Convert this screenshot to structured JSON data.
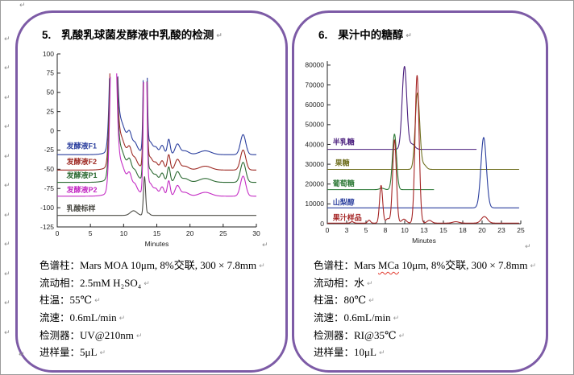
{
  "page": {
    "accent_border_color": "#7d5ba6",
    "outer_border_color": "#9b9b9b"
  },
  "marks": {
    "return_glyph": "↵"
  },
  "panels": [
    {
      "number": "5.",
      "title": "乳酸乳球菌发酵液中乳酸的检测",
      "specs": [
        {
          "label": "色谱柱：",
          "pre": "Mars MOA 10μm, 8%交联, 300 × 7.8mm",
          "mis": "",
          "post": ""
        },
        {
          "label": "流动相：",
          "pre": "2.5mM H₂SO₄",
          "mis": "",
          "post": ""
        },
        {
          "label": "柱温：",
          "pre": "55℃",
          "mis": "",
          "post": ""
        },
        {
          "label": "流速：",
          "pre": "0.6mL/min",
          "mis": "",
          "post": ""
        },
        {
          "label": "检测器：",
          "pre": "UV@210nm",
          "mis": "",
          "post": ""
        },
        {
          "label": "进样量：",
          "pre": "5μL",
          "mis": "",
          "post": ""
        }
      ]
    },
    {
      "number": "6.",
      "title": "果汁中的糖醇",
      "specs": [
        {
          "label": "色谱柱：",
          "pre": "Mars ",
          "mis": "MCa",
          "post": " 10μm, 8%交联, 300 × 7.8mm"
        },
        {
          "label": "流动相：",
          "pre": "水",
          "mis": "",
          "post": ""
        },
        {
          "label": "柱温：",
          "pre": "80℃",
          "mis": "",
          "post": ""
        },
        {
          "label": "流速：",
          "pre": "0.6mL/min",
          "mis": "",
          "post": ""
        },
        {
          "label": "检测器：",
          "pre": "RI@35℃",
          "mis": "",
          "post": ""
        },
        {
          "label": "进样量：",
          "pre": "10μL",
          "mis": "",
          "post": ""
        }
      ]
    }
  ],
  "chart_data": [
    {
      "type": "line",
      "title": "乳酸乳球菌发酵液中乳酸的检测 chromatogram",
      "xlabel": "Minutes",
      "ylabel": "",
      "xlim": [
        0,
        30
      ],
      "ylim": [
        -125,
        100
      ],
      "x_ticks": [
        0,
        5,
        10,
        15,
        20,
        25,
        30
      ],
      "x_tick_labels": [
        "0",
        "5",
        "10",
        "15",
        "20",
        "25",
        "30"
      ],
      "y_ticks": [
        100,
        75,
        50,
        25,
        0,
        -25,
        -50,
        -75,
        -100,
        -125
      ],
      "grid": false,
      "legend_position": "inline-left",
      "clip_value": 75,
      "series": [
        {
          "name": "发酵液F1",
          "color": "#2b3f9e",
          "baseline": -31,
          "label_pos": [
            1.4,
            -20
          ],
          "x_end": 30,
          "peaks": [
            [
              8.45,
              300,
              0.38
            ],
            [
              9.4,
              32,
              0.7
            ],
            [
              10.2,
              14,
              1.6
            ],
            [
              10.9,
              15,
              0.3
            ],
            [
              11.7,
              7,
              0.3
            ],
            [
              13.25,
              300,
              0.2
            ],
            [
              13.95,
              16,
              0.45
            ],
            [
              14.9,
              8,
              0.3
            ],
            [
              15.8,
              12,
              0.3
            ],
            [
              16.8,
              20,
              0.22
            ],
            [
              18.1,
              13,
              0.35
            ],
            [
              19.2,
              5,
              0.6
            ],
            [
              22.3,
              5,
              0.9
            ],
            [
              28.0,
              26,
              0.4
            ]
          ]
        },
        {
          "name": "发酵液F2",
          "color": "#9e2b25",
          "baseline": -51,
          "label_pos": [
            1.4,
            -40
          ],
          "x_end": 30,
          "peaks": [
            [
              8.45,
              300,
              0.38
            ],
            [
              9.4,
              32,
              0.7
            ],
            [
              10.2,
              14,
              1.6
            ],
            [
              10.9,
              15,
              0.3
            ],
            [
              11.7,
              7,
              0.3
            ],
            [
              13.25,
              300,
              0.2
            ],
            [
              13.95,
              16,
              0.45
            ],
            [
              14.9,
              8,
              0.3
            ],
            [
              15.8,
              12,
              0.3
            ],
            [
              16.8,
              20,
              0.22
            ],
            [
              18.1,
              13,
              0.35
            ],
            [
              19.2,
              5,
              0.6
            ],
            [
              22.3,
              5,
              0.9
            ],
            [
              28.0,
              26,
              0.4
            ]
          ]
        },
        {
          "name": "发酵液P1",
          "color": "#2d6a33",
          "baseline": -67,
          "label_pos": [
            1.4,
            -58
          ],
          "x_end": 30,
          "peaks": [
            [
              8.45,
              300,
              0.38
            ],
            [
              9.4,
              32,
              0.7
            ],
            [
              10.2,
              14,
              1.6
            ],
            [
              10.9,
              15,
              0.3
            ],
            [
              11.7,
              7,
              0.3
            ],
            [
              13.25,
              300,
              0.2
            ],
            [
              13.95,
              16,
              0.45
            ],
            [
              14.9,
              8,
              0.3
            ],
            [
              15.8,
              12,
              0.3
            ],
            [
              16.8,
              20,
              0.22
            ],
            [
              18.1,
              13,
              0.35
            ],
            [
              19.2,
              5,
              0.6
            ],
            [
              22.3,
              5,
              0.9
            ],
            [
              28.0,
              26,
              0.4
            ]
          ]
        },
        {
          "name": "发酵液P2",
          "color": "#c42bc4",
          "baseline": -85,
          "label_pos": [
            1.4,
            -77
          ],
          "x_end": 30,
          "peaks": [
            [
              8.45,
              300,
              0.38
            ],
            [
              9.4,
              32,
              0.7
            ],
            [
              10.2,
              14,
              1.6
            ],
            [
              10.9,
              15,
              0.3
            ],
            [
              11.7,
              7,
              0.3
            ],
            [
              13.25,
              300,
              0.2
            ],
            [
              13.95,
              16,
              0.45
            ],
            [
              14.9,
              8,
              0.3
            ],
            [
              15.8,
              12,
              0.3
            ],
            [
              16.8,
              20,
              0.22
            ],
            [
              18.1,
              13,
              0.35
            ],
            [
              19.2,
              5,
              0.6
            ],
            [
              22.3,
              5,
              0.9
            ],
            [
              28.0,
              26,
              0.4
            ]
          ]
        },
        {
          "name": "乳酸标样",
          "color": "#4c4c46",
          "baseline": -110,
          "label_pos": [
            1.4,
            -101
          ],
          "x_end": 30,
          "peaks": [
            [
              11.5,
              6,
              0.5
            ],
            [
              13.15,
              50,
              0.16
            ],
            [
              13.7,
              3,
              0.25
            ]
          ]
        }
      ]
    },
    {
      "type": "line",
      "title": "果汁中的糖醇 chromatogram",
      "xlabel": "Minutes",
      "ylabel": "",
      "xlim": [
        0,
        25
      ],
      "ylim": [
        0,
        82000
      ],
      "x_ticks": [
        0,
        2.5,
        5,
        7.5,
        10,
        12.5,
        15,
        17.5,
        20,
        22.5,
        25
      ],
      "x_tick_labels": [
        "0",
        "3",
        "5",
        "8",
        "10",
        "13",
        "15",
        "18",
        "20",
        "23",
        "25"
      ],
      "y_ticks": [
        80000,
        70000,
        60000,
        50000,
        40000,
        30000,
        20000,
        10000,
        0
      ],
      "grid": false,
      "legend_position": "inline-left",
      "clip_value": null,
      "series": [
        {
          "name": "半乳糖",
          "color": "#4a1e7d",
          "baseline": 37500,
          "label_pos": [
            0.7,
            41200
          ],
          "x_end": 19.3,
          "peaks": [
            [
              9.97,
              41800,
              0.3
            ],
            [
              10.95,
              2600,
              0.35
            ]
          ]
        },
        {
          "name": "果糖",
          "color": "#6f6f1f",
          "baseline": 27400,
          "label_pos": [
            1.0,
            30600
          ],
          "x_end": 24.8,
          "peaks": [
            [
              11.65,
              38500,
              0.29
            ],
            [
              12.5,
              2200,
              0.3
            ]
          ]
        },
        {
          "name": "葡萄糖",
          "color": "#2f7a38",
          "baseline": 17200,
          "label_pos": [
            0.7,
            20300
          ],
          "x_end": 13.8,
          "peaks": [
            [
              7.05,
              700,
              0.3
            ],
            [
              8.68,
              28000,
              0.26
            ]
          ]
        },
        {
          "name": "山梨醇",
          "color": "#2b3f9e",
          "baseline": 8000,
          "label_pos": [
            0.7,
            10800
          ],
          "x_end": 24.8,
          "peaks": [
            [
              20.2,
              35500,
              0.35
            ]
          ]
        },
        {
          "name": "果汁样品",
          "color": "#a52525",
          "baseline": 300,
          "label_pos": [
            0.7,
            3000
          ],
          "x_end": 24.8,
          "peaks": [
            [
              3.2,
              700,
              0.2
            ],
            [
              5.4,
              1500,
              0.18
            ],
            [
              6.95,
              19000,
              0.2
            ],
            [
              7.8,
              2200,
              0.25
            ],
            [
              8.68,
              42000,
              0.24
            ],
            [
              9.9,
              2000,
              0.3
            ],
            [
              11.6,
              74500,
              0.26
            ],
            [
              13.2,
              1400,
              0.3
            ],
            [
              16.6,
              700,
              0.4
            ],
            [
              20.3,
              3300,
              0.4
            ]
          ]
        }
      ]
    }
  ]
}
